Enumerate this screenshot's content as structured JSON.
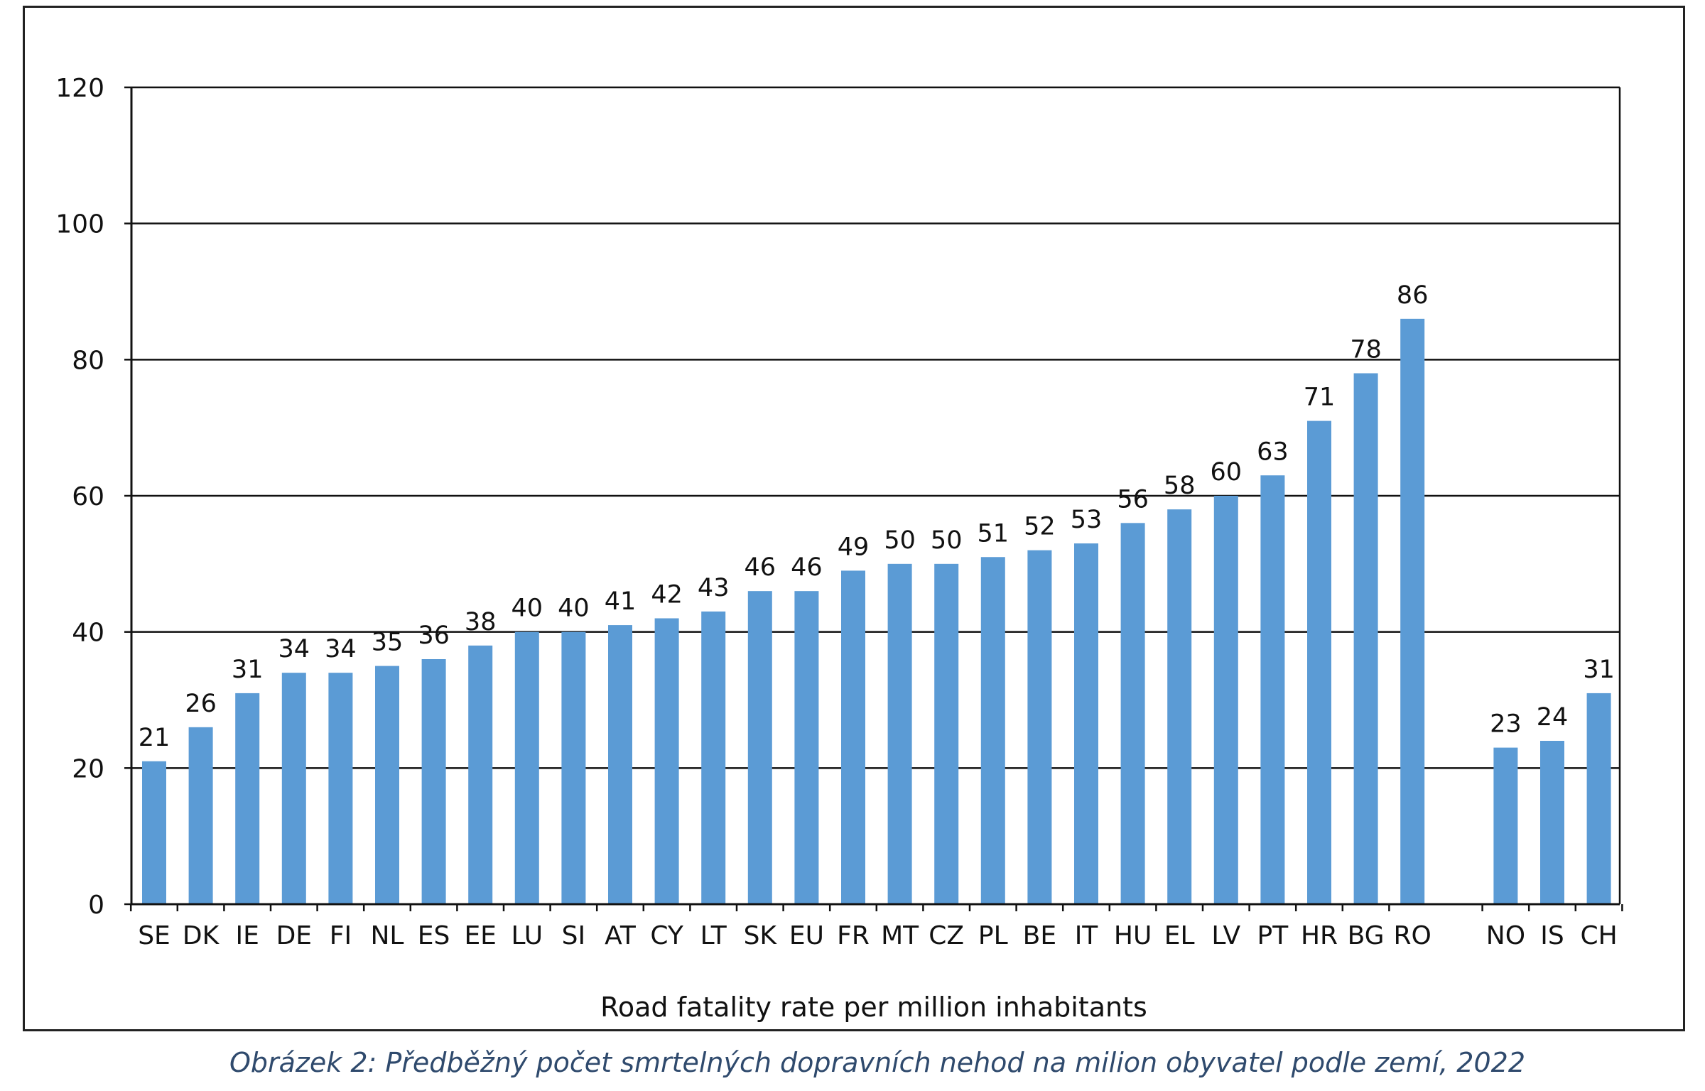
{
  "chart_data": {
    "type": "bar",
    "title": "",
    "xlabel": "Road fatality rate per million inhabitants",
    "ylabel": "",
    "ylim": [
      0,
      120
    ],
    "yticks": [
      0,
      20,
      40,
      60,
      80,
      100,
      120
    ],
    "grid": true,
    "legend": "none",
    "bar_color": "#5b9bd5",
    "categories": [
      "SE",
      "DK",
      "IE",
      "DE",
      "FI",
      "NL",
      "ES",
      "EE",
      "LU",
      "SI",
      "AT",
      "CY",
      "LT",
      "SK",
      "EU",
      "FR",
      "MT",
      "CZ",
      "PL",
      "BE",
      "IT",
      "HU",
      "EL",
      "LV",
      "PT",
      "HR",
      "BG",
      "RO",
      "NO",
      "IS",
      "CH"
    ],
    "values": [
      21,
      26,
      31,
      34,
      34,
      35,
      36,
      38,
      40,
      40,
      41,
      42,
      43,
      46,
      46,
      49,
      50,
      50,
      51,
      52,
      53,
      56,
      58,
      60,
      63,
      71,
      78,
      86,
      23,
      24,
      31
    ],
    "groups": [
      {
        "categories": [
          "SE",
          "DK",
          "IE",
          "DE",
          "FI",
          "NL",
          "ES",
          "EE",
          "LU",
          "SI",
          "AT",
          "CY",
          "LT",
          "SK",
          "EU",
          "FR",
          "MT",
          "CZ",
          "PL",
          "BE",
          "IT",
          "HU",
          "EL",
          "LV",
          "PT",
          "HR",
          "BG",
          "RO"
        ]
      },
      {
        "categories": [
          "NO",
          "IS",
          "CH"
        ]
      }
    ]
  },
  "caption": "Obrázek 2: Předběžný počet smrtelných dopravních nehod na milion obyvatel podle zemí, 2022"
}
